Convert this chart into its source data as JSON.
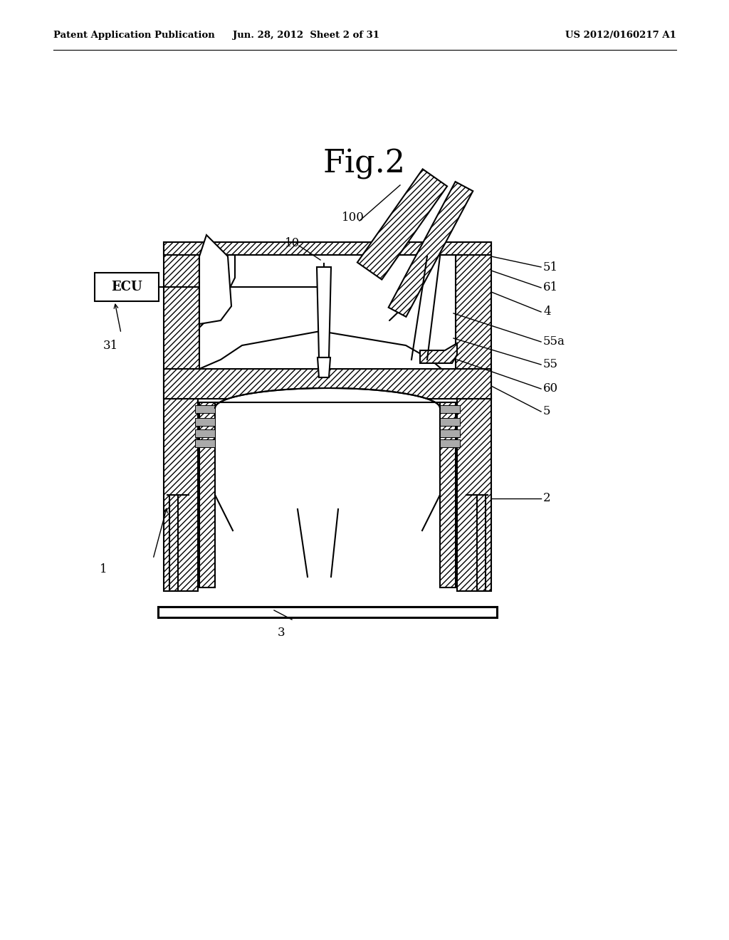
{
  "bg_color": "#ffffff",
  "line_color": "#000000",
  "fig_title": "Fig.2",
  "fig_title_fontsize": 32,
  "header_left": "Patent Application Publication",
  "header_mid": "Jun. 28, 2012  Sheet 2 of 31",
  "header_right": "US 2012/0160217 A1",
  "header_fontsize": 9.5,
  "label_fontsize": 12,
  "ecu_text": "ECU",
  "ecu_fontsize": 13
}
